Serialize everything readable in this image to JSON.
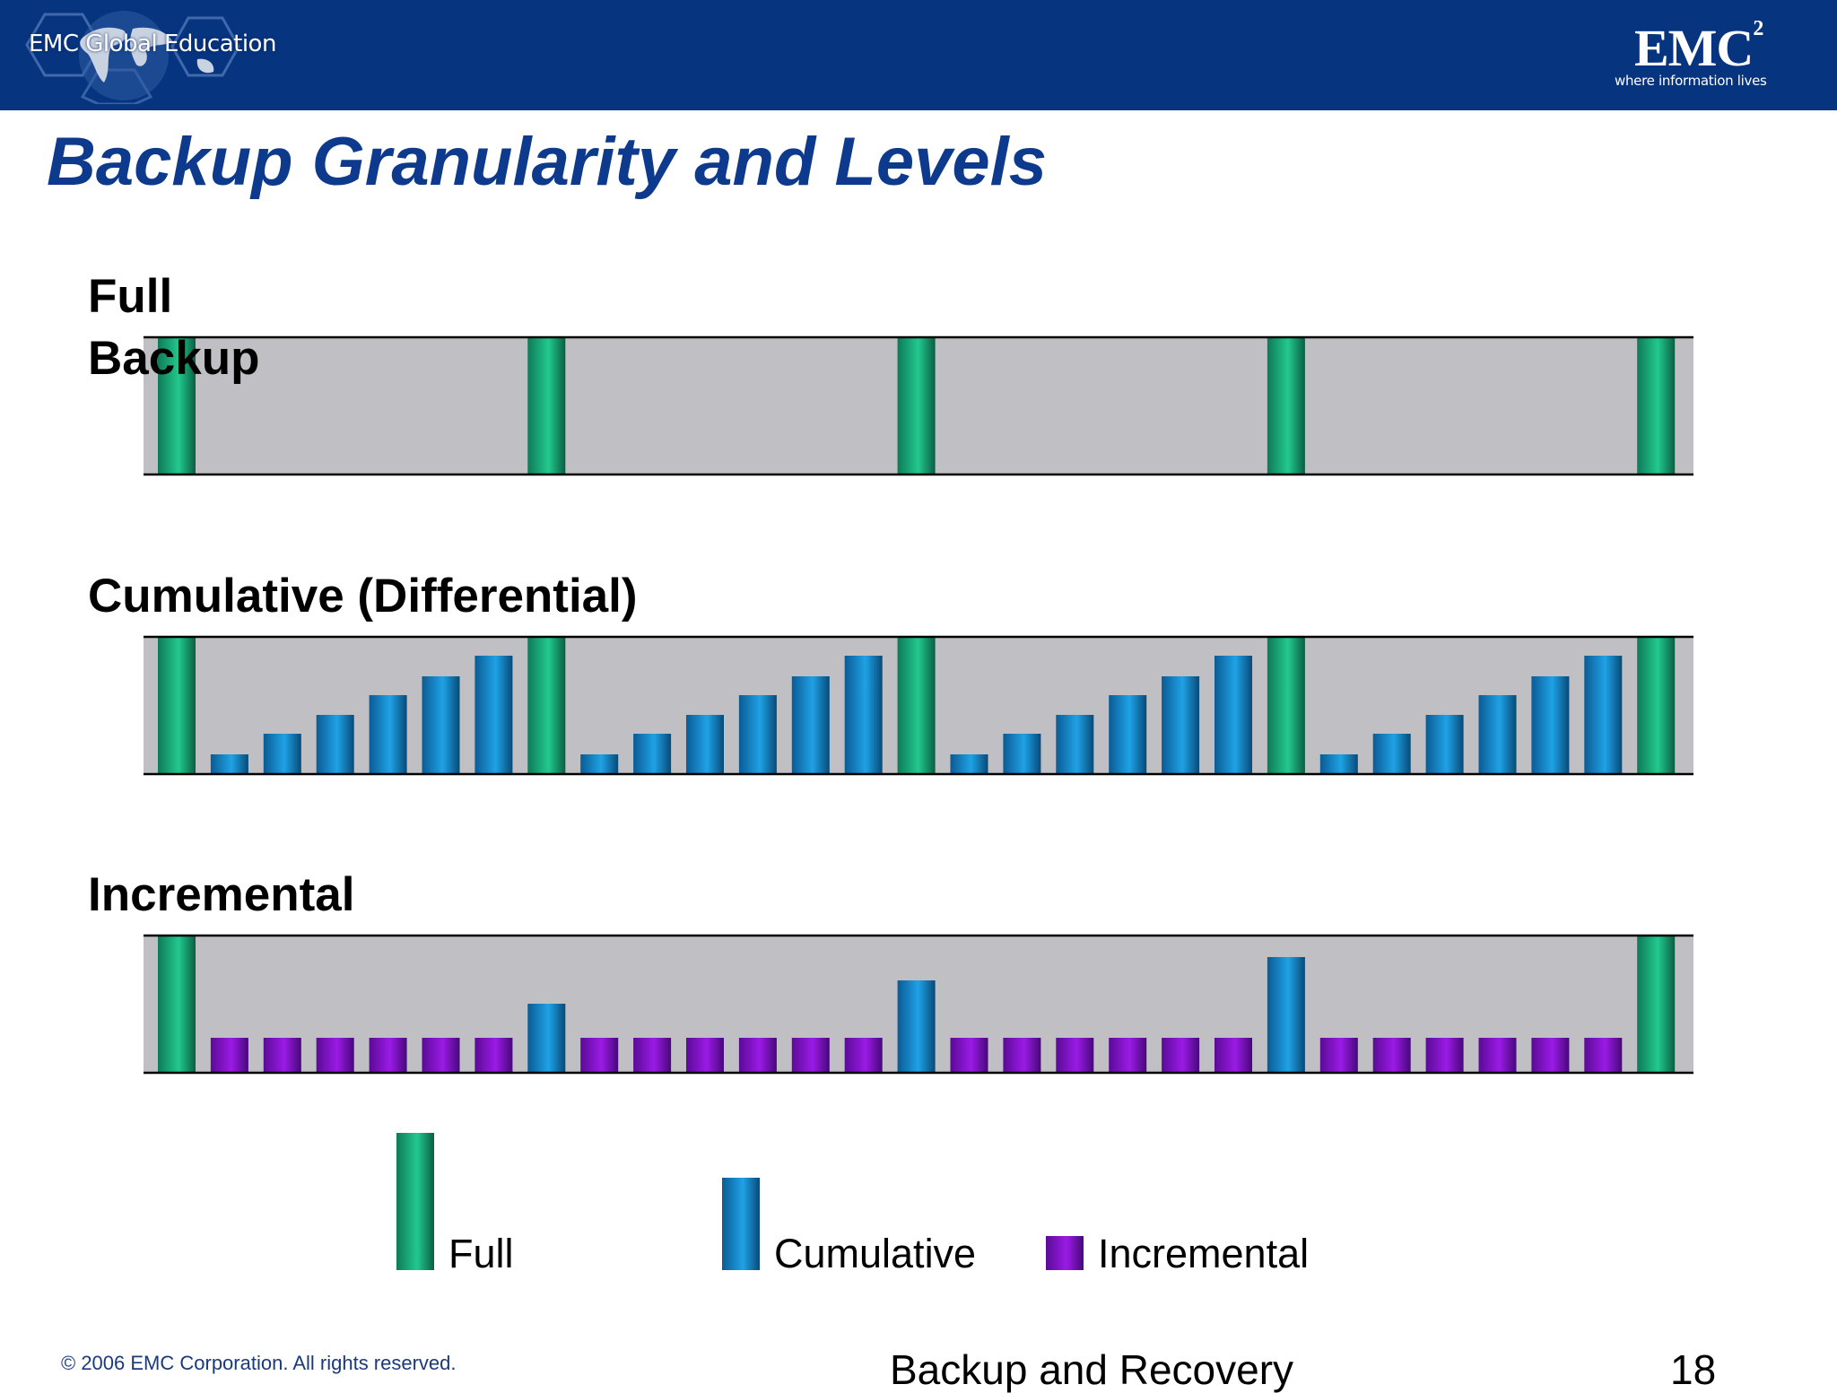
{
  "header": {
    "logo_text": "EMC Global Education",
    "brand": "EMC",
    "brand_sup": "2",
    "tagline": "where information lives"
  },
  "title": "Backup Granularity and Levels",
  "sections": {
    "full": "Full Backup",
    "cumulative": "Cumulative (Differential)",
    "incremental": "Incremental"
  },
  "chart_data": {
    "type": "bar",
    "title": "",
    "xlabel": "",
    "ylabel": "",
    "grid": false,
    "legend": [
      "Full",
      "Cumulative",
      "Incremental"
    ],
    "legend_placement": "bottom",
    "colors": {
      "Full": "#16a77a",
      "Cumulative": "#1787c6",
      "Incremental": "#7d11c9",
      "panel": "#c0bfc3"
    },
    "rows": [
      {
        "name": "Full Backup",
        "slots": 29,
        "bars": [
          {
            "slot": 0,
            "kind": "Full",
            "level": 1.0
          },
          {
            "slot": 7,
            "kind": "Full",
            "level": 1.0
          },
          {
            "slot": 14,
            "kind": "Full",
            "level": 1.0
          },
          {
            "slot": 21,
            "kind": "Full",
            "level": 1.0
          },
          {
            "slot": 28,
            "kind": "Full",
            "level": 1.0
          }
        ]
      },
      {
        "name": "Cumulative (Differential)",
        "slots": 29,
        "bars": [
          {
            "slot": 0,
            "kind": "Full",
            "level": 1.0
          },
          {
            "slot": 1,
            "kind": "Cumulative",
            "level": 0.14
          },
          {
            "slot": 2,
            "kind": "Cumulative",
            "level": 0.29
          },
          {
            "slot": 3,
            "kind": "Cumulative",
            "level": 0.43
          },
          {
            "slot": 4,
            "kind": "Cumulative",
            "level": 0.57
          },
          {
            "slot": 5,
            "kind": "Cumulative",
            "level": 0.71
          },
          {
            "slot": 6,
            "kind": "Cumulative",
            "level": 0.86
          },
          {
            "slot": 7,
            "kind": "Full",
            "level": 1.0
          },
          {
            "slot": 8,
            "kind": "Cumulative",
            "level": 0.14
          },
          {
            "slot": 9,
            "kind": "Cumulative",
            "level": 0.29
          },
          {
            "slot": 10,
            "kind": "Cumulative",
            "level": 0.43
          },
          {
            "slot": 11,
            "kind": "Cumulative",
            "level": 0.57
          },
          {
            "slot": 12,
            "kind": "Cumulative",
            "level": 0.71
          },
          {
            "slot": 13,
            "kind": "Cumulative",
            "level": 0.86
          },
          {
            "slot": 14,
            "kind": "Full",
            "level": 1.0
          },
          {
            "slot": 15,
            "kind": "Cumulative",
            "level": 0.14
          },
          {
            "slot": 16,
            "kind": "Cumulative",
            "level": 0.29
          },
          {
            "slot": 17,
            "kind": "Cumulative",
            "level": 0.43
          },
          {
            "slot": 18,
            "kind": "Cumulative",
            "level": 0.57
          },
          {
            "slot": 19,
            "kind": "Cumulative",
            "level": 0.71
          },
          {
            "slot": 20,
            "kind": "Cumulative",
            "level": 0.86
          },
          {
            "slot": 21,
            "kind": "Full",
            "level": 1.0
          },
          {
            "slot": 22,
            "kind": "Cumulative",
            "level": 0.14
          },
          {
            "slot": 23,
            "kind": "Cumulative",
            "level": 0.29
          },
          {
            "slot": 24,
            "kind": "Cumulative",
            "level": 0.43
          },
          {
            "slot": 25,
            "kind": "Cumulative",
            "level": 0.57
          },
          {
            "slot": 26,
            "kind": "Cumulative",
            "level": 0.71
          },
          {
            "slot": 27,
            "kind": "Cumulative",
            "level": 0.86
          },
          {
            "slot": 28,
            "kind": "Full",
            "level": 1.0
          }
        ]
      },
      {
        "name": "Incremental",
        "slots": 29,
        "bars": [
          {
            "slot": 0,
            "kind": "Full",
            "level": 1.0
          },
          {
            "slot": 1,
            "kind": "Incremental",
            "level": 0.25
          },
          {
            "slot": 2,
            "kind": "Incremental",
            "level": 0.25
          },
          {
            "slot": 3,
            "kind": "Incremental",
            "level": 0.25
          },
          {
            "slot": 4,
            "kind": "Incremental",
            "level": 0.25
          },
          {
            "slot": 5,
            "kind": "Incremental",
            "level": 0.25
          },
          {
            "slot": 6,
            "kind": "Incremental",
            "level": 0.25
          },
          {
            "slot": 7,
            "kind": "Cumulative",
            "level": 0.5
          },
          {
            "slot": 8,
            "kind": "Incremental",
            "level": 0.25
          },
          {
            "slot": 9,
            "kind": "Incremental",
            "level": 0.25
          },
          {
            "slot": 10,
            "kind": "Incremental",
            "level": 0.25
          },
          {
            "slot": 11,
            "kind": "Incremental",
            "level": 0.25
          },
          {
            "slot": 12,
            "kind": "Incremental",
            "level": 0.25
          },
          {
            "slot": 13,
            "kind": "Incremental",
            "level": 0.25
          },
          {
            "slot": 14,
            "kind": "Cumulative",
            "level": 0.67
          },
          {
            "slot": 15,
            "kind": "Incremental",
            "level": 0.25
          },
          {
            "slot": 16,
            "kind": "Incremental",
            "level": 0.25
          },
          {
            "slot": 17,
            "kind": "Incremental",
            "level": 0.25
          },
          {
            "slot": 18,
            "kind": "Incremental",
            "level": 0.25
          },
          {
            "slot": 19,
            "kind": "Incremental",
            "level": 0.25
          },
          {
            "slot": 20,
            "kind": "Incremental",
            "level": 0.25
          },
          {
            "slot": 21,
            "kind": "Cumulative",
            "level": 0.84
          },
          {
            "slot": 22,
            "kind": "Incremental",
            "level": 0.25
          },
          {
            "slot": 23,
            "kind": "Incremental",
            "level": 0.25
          },
          {
            "slot": 24,
            "kind": "Incremental",
            "level": 0.25
          },
          {
            "slot": 25,
            "kind": "Incremental",
            "level": 0.25
          },
          {
            "slot": 26,
            "kind": "Incremental",
            "level": 0.25
          },
          {
            "slot": 27,
            "kind": "Incremental",
            "level": 0.25
          },
          {
            "slot": 28,
            "kind": "Full",
            "level": 1.0
          }
        ]
      }
    ]
  },
  "legend": {
    "full": "Full",
    "cumulative": "Cumulative",
    "incremental": "Incremental"
  },
  "footer": {
    "copyright": "© 2006 EMC Corporation. All rights reserved.",
    "course": "Backup and Recovery",
    "page": "18"
  }
}
